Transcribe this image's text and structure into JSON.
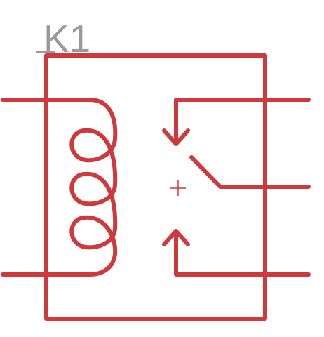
{
  "component": {
    "reference_label": "K1",
    "label_color": "#9a9a9a",
    "line_color": "#d0393b",
    "origin_marker_color": "#d0393b",
    "symbol_type": "relay-spdt"
  }
}
